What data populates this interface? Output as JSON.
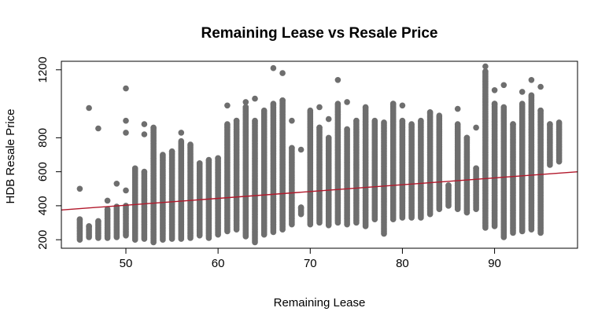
{
  "chart_data": {
    "type": "scatter",
    "title": "Remaining Lease vs Resale Price",
    "xlabel": "Remaining Lease",
    "ylabel": "HDB Resale Price",
    "xlim": [
      43,
      99
    ],
    "ylim": [
      150,
      1250
    ],
    "x_ticks": [
      50,
      60,
      70,
      80,
      90
    ],
    "y_ticks": [
      200,
      400,
      600,
      800,
      1200
    ],
    "point_color": "#6e6e6e",
    "line_color": "#b2182b",
    "grid": false,
    "legend": "none",
    "columns": [
      {
        "x": 45,
        "min": 200,
        "max": 320,
        "outliers": [
          500
        ]
      },
      {
        "x": 46,
        "min": 215,
        "max": 280,
        "outliers": [
          975
        ]
      },
      {
        "x": 47,
        "min": 210,
        "max": 310,
        "outliers": [
          855
        ]
      },
      {
        "x": 48,
        "min": 210,
        "max": 380,
        "outliers": [
          430
        ]
      },
      {
        "x": 49,
        "min": 215,
        "max": 395,
        "outliers": [
          530
        ]
      },
      {
        "x": 50,
        "min": 225,
        "max": 400,
        "outliers": [
          490,
          830,
          900,
          1090
        ]
      },
      {
        "x": 51,
        "min": 200,
        "max": 620,
        "outliers": []
      },
      {
        "x": 52,
        "min": 205,
        "max": 600,
        "outliers": [
          820,
          880
        ]
      },
      {
        "x": 53,
        "min": 185,
        "max": 860,
        "outliers": []
      },
      {
        "x": 54,
        "min": 200,
        "max": 700,
        "outliers": []
      },
      {
        "x": 55,
        "min": 205,
        "max": 720,
        "outliers": []
      },
      {
        "x": 56,
        "min": 205,
        "max": 780,
        "outliers": [
          830
        ]
      },
      {
        "x": 57,
        "min": 210,
        "max": 760,
        "outliers": []
      },
      {
        "x": 58,
        "min": 225,
        "max": 650,
        "outliers": []
      },
      {
        "x": 59,
        "min": 210,
        "max": 670,
        "outliers": []
      },
      {
        "x": 60,
        "min": 230,
        "max": 680,
        "outliers": []
      },
      {
        "x": 61,
        "min": 250,
        "max": 880,
        "outliers": [
          990
        ]
      },
      {
        "x": 62,
        "min": 260,
        "max": 900,
        "outliers": []
      },
      {
        "x": 63,
        "min": 220,
        "max": 980,
        "outliers": [
          1010
        ]
      },
      {
        "x": 64,
        "min": 185,
        "max": 900,
        "outliers": [
          1030
        ]
      },
      {
        "x": 65,
        "min": 230,
        "max": 960,
        "outliers": []
      },
      {
        "x": 66,
        "min": 245,
        "max": 1000,
        "outliers": [
          1210
        ]
      },
      {
        "x": 67,
        "min": 260,
        "max": 1020,
        "outliers": [
          1180
        ]
      },
      {
        "x": 68,
        "min": 290,
        "max": 740,
        "outliers": [
          900
        ]
      },
      {
        "x": 69,
        "min": 350,
        "max": 390,
        "outliers": [
          730
        ]
      },
      {
        "x": 70,
        "min": 290,
        "max": 960,
        "outliers": []
      },
      {
        "x": 71,
        "min": 300,
        "max": 860,
        "outliers": [
          980
        ]
      },
      {
        "x": 72,
        "min": 285,
        "max": 800,
        "outliers": [
          910
        ]
      },
      {
        "x": 73,
        "min": 300,
        "max": 1000,
        "outliers": [
          1140
        ]
      },
      {
        "x": 74,
        "min": 290,
        "max": 850,
        "outliers": [
          1010
        ]
      },
      {
        "x": 75,
        "min": 300,
        "max": 900,
        "outliers": []
      },
      {
        "x": 76,
        "min": 280,
        "max": 980,
        "outliers": []
      },
      {
        "x": 77,
        "min": 320,
        "max": 900,
        "outliers": []
      },
      {
        "x": 78,
        "min": 235,
        "max": 890,
        "outliers": []
      },
      {
        "x": 79,
        "min": 320,
        "max": 1000,
        "outliers": []
      },
      {
        "x": 80,
        "min": 330,
        "max": 900,
        "outliers": [
          990
        ]
      },
      {
        "x": 81,
        "min": 330,
        "max": 880,
        "outliers": []
      },
      {
        "x": 82,
        "min": 330,
        "max": 900,
        "outliers": []
      },
      {
        "x": 83,
        "min": 350,
        "max": 950,
        "outliers": []
      },
      {
        "x": 84,
        "min": 380,
        "max": 930,
        "outliers": []
      },
      {
        "x": 85,
        "min": 400,
        "max": 520,
        "outliers": []
      },
      {
        "x": 86,
        "min": 380,
        "max": 880,
        "outliers": [
          970
        ]
      },
      {
        "x": 87,
        "min": 360,
        "max": 800,
        "outliers": []
      },
      {
        "x": 88,
        "min": 380,
        "max": 620,
        "outliers": [
          860
        ]
      },
      {
        "x": 89,
        "min": 270,
        "max": 1190,
        "outliers": [
          1220
        ]
      },
      {
        "x": 90,
        "min": 280,
        "max": 1000,
        "outliers": [
          1080
        ]
      },
      {
        "x": 91,
        "min": 215,
        "max": 980,
        "outliers": [
          1110
        ]
      },
      {
        "x": 92,
        "min": 240,
        "max": 880,
        "outliers": []
      },
      {
        "x": 93,
        "min": 250,
        "max": 1000,
        "outliers": [
          1070
        ]
      },
      {
        "x": 94,
        "min": 260,
        "max": 1050,
        "outliers": [
          1140
        ]
      },
      {
        "x": 95,
        "min": 240,
        "max": 960,
        "outliers": [
          1100
        ]
      },
      {
        "x": 96,
        "min": 640,
        "max": 880,
        "outliers": []
      },
      {
        "x": 97,
        "min": 660,
        "max": 890,
        "outliers": []
      }
    ],
    "regression_line": {
      "x": [
        43,
        99
      ],
      "y": [
        375,
        600
      ]
    }
  }
}
